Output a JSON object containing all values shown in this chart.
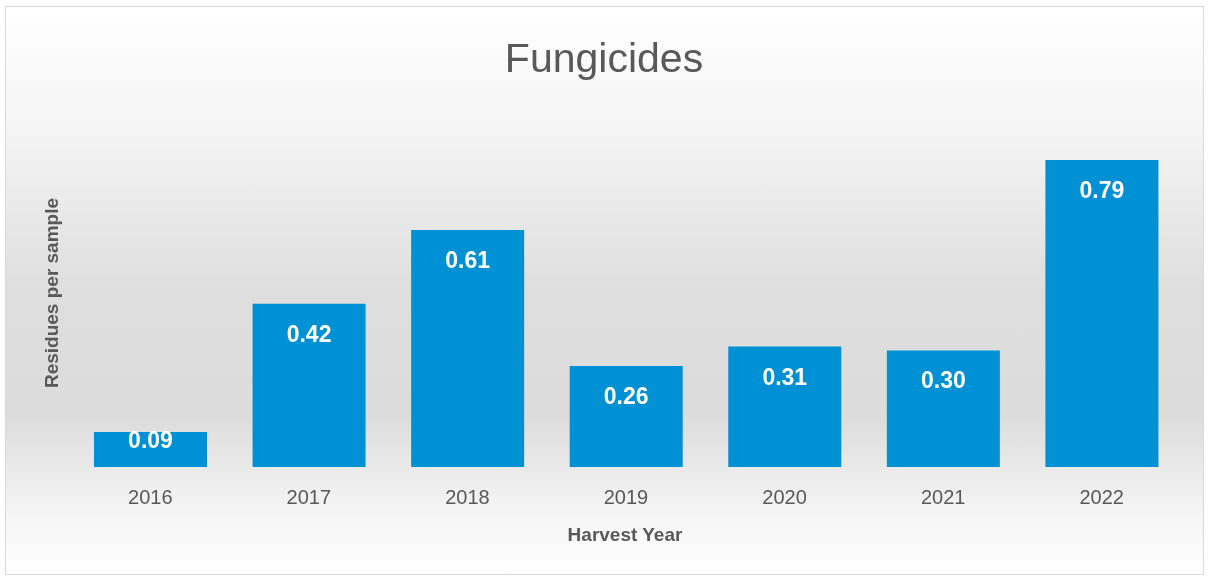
{
  "chart_data": {
    "type": "bar",
    "title": "Fungicides",
    "xlabel": "Harvest Year",
    "ylabel": "Residues per sample",
    "categories": [
      "2016",
      "2017",
      "2018",
      "2019",
      "2020",
      "2021",
      "2022"
    ],
    "values": [
      0.09,
      0.42,
      0.61,
      0.26,
      0.31,
      0.3,
      0.79
    ],
    "color": "#0090d4",
    "value_labels": [
      "0.09",
      "0.42",
      "0.61",
      "0.26",
      "0.31",
      "0.30",
      "0.79"
    ]
  }
}
